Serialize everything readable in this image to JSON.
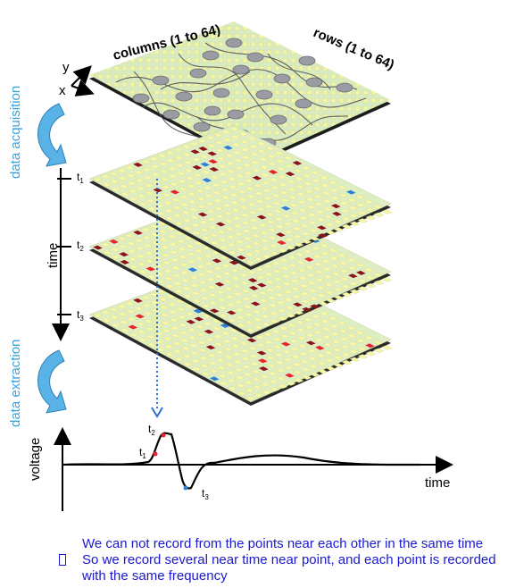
{
  "labels": {
    "columns": "columns (1 to 64)",
    "rows": "rows (1 to 64)",
    "axis_y": "y",
    "axis_x": "x",
    "data_acquisition": "data acquisition",
    "data_extraction": "data extraction",
    "time_vertical": "time",
    "voltage": "voltage",
    "time_horizontal": "time"
  },
  "time_steps": [
    {
      "t": "t",
      "sub": "1"
    },
    {
      "t": "t",
      "sub": "2"
    },
    {
      "t": "t",
      "sub": "3"
    }
  ],
  "trace_markers": [
    {
      "t": "t",
      "sub": "2"
    },
    {
      "t": "t",
      "sub": "1"
    },
    {
      "t": "t",
      "sub": "3"
    }
  ],
  "caption": {
    "lines": [
      "We can not record from the points near each other in the same time",
      "So we record several near time near point, and each point is recorded",
      "with the same frequency"
    ]
  },
  "colors": {
    "grid_base": "#dfeec2",
    "cell": "#f6f7a8",
    "active_red": "#e8242a",
    "dark_red": "#8e1218",
    "blue": "#2f7fd8",
    "cyan_label": "#3aa3dc",
    "caption": "#1a1ad0"
  }
}
